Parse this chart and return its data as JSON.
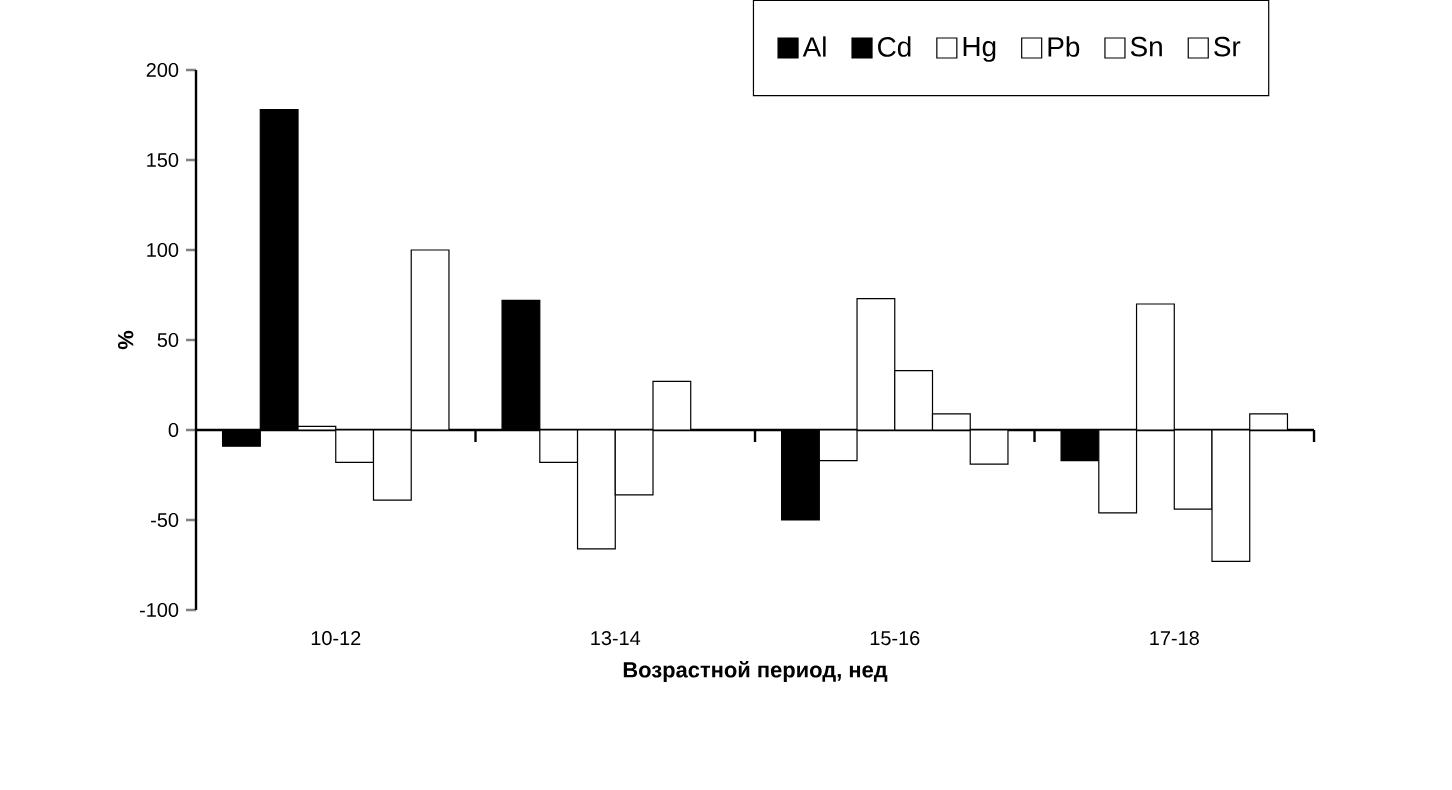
{
  "chart_data": {
    "type": "bar",
    "xlabel": "Возрастной период, нед",
    "ylabel": "%",
    "categories": [
      "10-12",
      "13-14",
      "15-16",
      "17-18"
    ],
    "series": [
      {
        "name": "Al",
        "color": "#000000",
        "values": [
          -9,
          72,
          -50,
          -17
        ]
      },
      {
        "name": "Cd",
        "color": "#000000",
        "colors": [
          "#000000",
          "#ffffff",
          "#ffffff",
          "#ffffff"
        ],
        "values": [
          178,
          -18,
          -17,
          -46
        ]
      },
      {
        "name": "Hg",
        "color": "#ffffff",
        "values": [
          2,
          -66,
          73,
          70
        ]
      },
      {
        "name": "Pb",
        "color": "#ffffff",
        "values": [
          -18,
          -36,
          33,
          -44
        ]
      },
      {
        "name": "Sn",
        "color": "#ffffff",
        "values": [
          -39,
          27,
          9,
          -73
        ]
      },
      {
        "name": "Sr",
        "color": "#ffffff",
        "values": [
          100,
          0,
          -19,
          9
        ]
      }
    ],
    "ylim": [
      -100,
      200
    ],
    "yticks": [
      -100,
      -50,
      0,
      50,
      100,
      150,
      200
    ],
    "legend": "top right"
  }
}
